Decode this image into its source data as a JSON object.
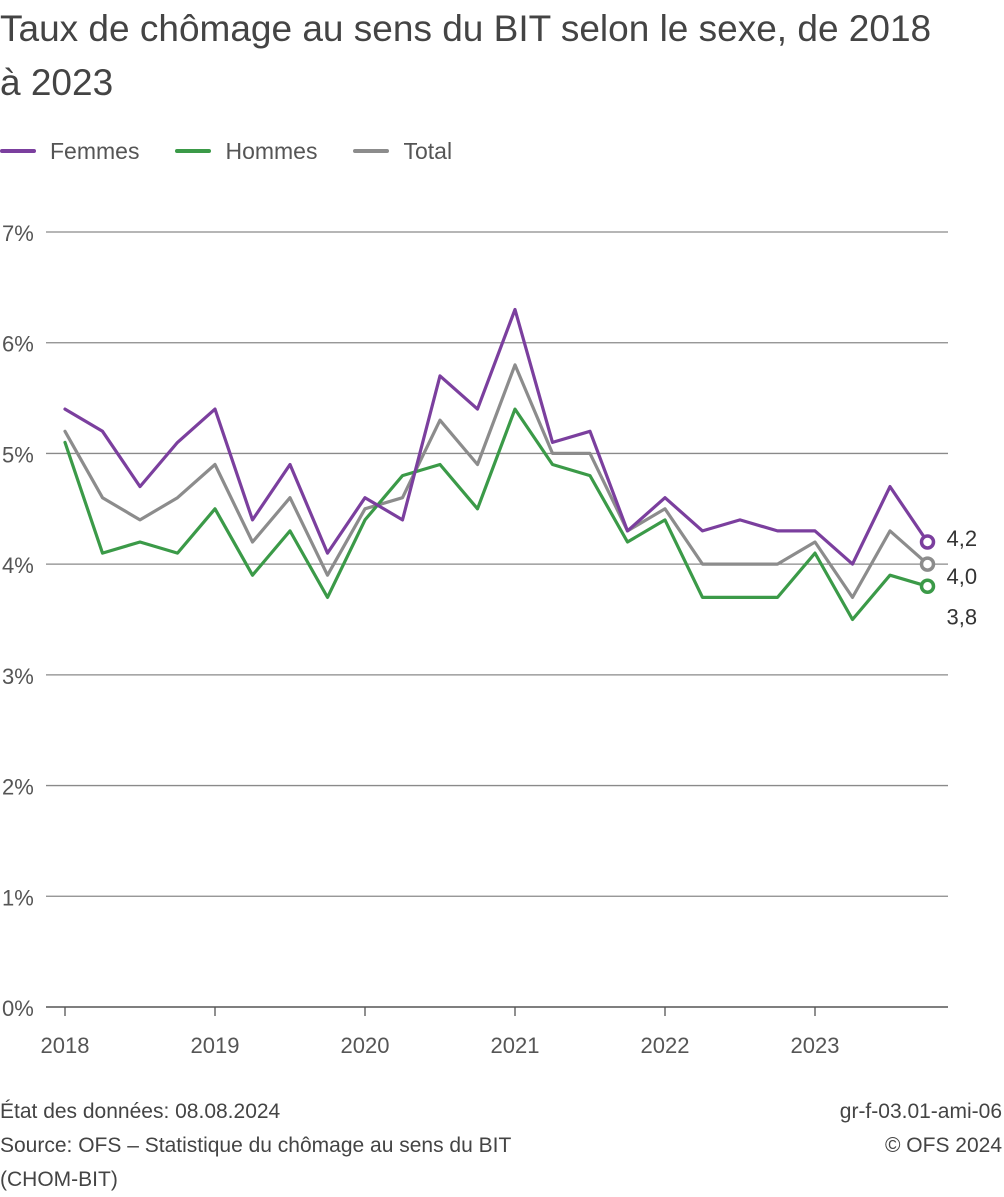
{
  "title": "Taux de chômage au sens du BIT selon le sexe, de 2018 à 2023",
  "legend": [
    {
      "name": "Femmes",
      "color": "#7b3f9e"
    },
    {
      "name": "Hommes",
      "color": "#3b9a48"
    },
    {
      "name": "Total",
      "color": "#8c8c8c"
    }
  ],
  "chart_data": {
    "type": "line",
    "title": "Taux de chômage au sens du BIT selon le sexe, de 2018 à 2023",
    "xlabel": "",
    "ylabel": "",
    "ylim": [
      0,
      7
    ],
    "yticks": [
      "0%",
      "1%",
      "2%",
      "3%",
      "4%",
      "5%",
      "6%",
      "7%"
    ],
    "xticks": [
      "2018",
      "2019",
      "2020",
      "2021",
      "2022",
      "2023"
    ],
    "grid": true,
    "legend_position": "top-left",
    "x": [
      "2018T1",
      "2018T2",
      "2018T3",
      "2018T4",
      "2019T1",
      "2019T2",
      "2019T3",
      "2019T4",
      "2020T1",
      "2020T2",
      "2020T3",
      "2020T4",
      "2021T1",
      "2021T2",
      "2021T3",
      "2021T4",
      "2022T1",
      "2022T2",
      "2022T3",
      "2022T4",
      "2023T1",
      "2023T2",
      "2023T3",
      "2023T4"
    ],
    "series": [
      {
        "name": "Femmes",
        "color": "#7b3f9e",
        "values": [
          5.4,
          5.2,
          4.7,
          5.1,
          5.4,
          4.4,
          4.9,
          4.1,
          4.6,
          4.4,
          5.7,
          5.4,
          6.3,
          5.1,
          5.2,
          4.3,
          4.6,
          4.3,
          4.4,
          4.3,
          4.3,
          4.0,
          4.7,
          4.2
        ],
        "end_label": "4,2"
      },
      {
        "name": "Hommes",
        "color": "#3b9a48",
        "values": [
          5.1,
          4.1,
          4.2,
          4.1,
          4.5,
          3.9,
          4.3,
          3.7,
          4.4,
          4.8,
          4.9,
          4.5,
          5.4,
          4.9,
          4.8,
          4.2,
          4.4,
          3.7,
          3.7,
          3.7,
          4.1,
          3.5,
          3.9,
          3.8
        ],
        "end_label": "3,8"
      },
      {
        "name": "Total",
        "color": "#8c8c8c",
        "values": [
          5.2,
          4.6,
          4.4,
          4.6,
          4.9,
          4.2,
          4.6,
          3.9,
          4.5,
          4.6,
          5.3,
          4.9,
          5.8,
          5.0,
          5.0,
          4.3,
          4.5,
          4.0,
          4.0,
          4.0,
          4.2,
          3.7,
          4.3,
          4.0
        ],
        "end_label": "4,0"
      }
    ]
  },
  "footer": {
    "data_status": "État des données: 08.08.2024",
    "source_line1": "Source: OFS – Statistique du chômage au sens du BIT",
    "source_line2": "(CHOM-BIT)",
    "code": "gr-f-03.01-ami-06",
    "copyright": "© OFS 2024"
  }
}
